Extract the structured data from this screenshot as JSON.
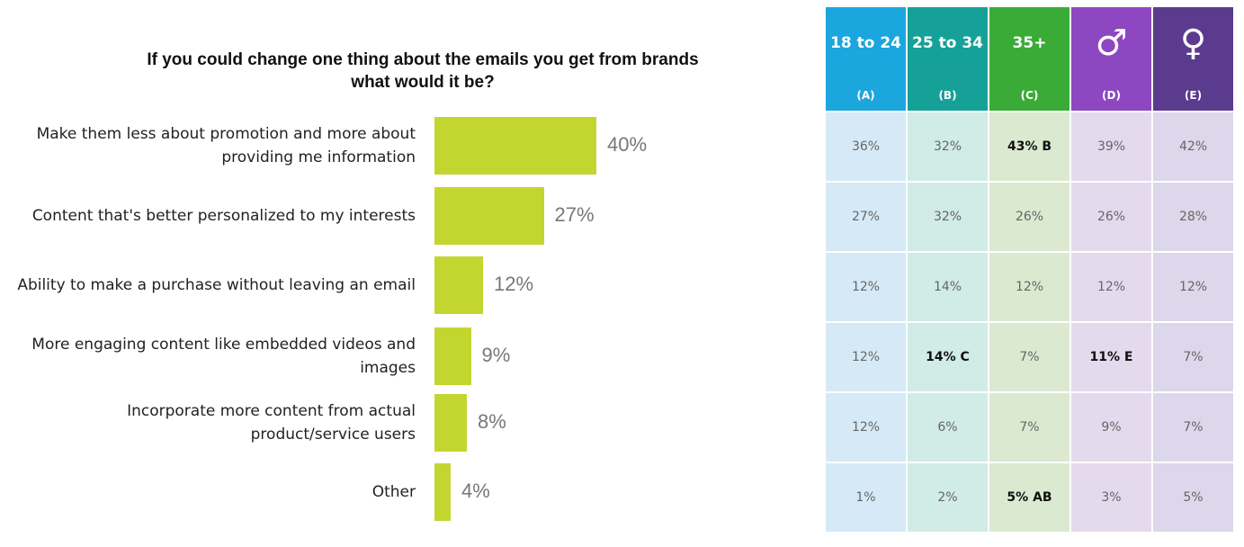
{
  "chart_data": {
    "type": "bar",
    "orientation": "horizontal",
    "title": "If you could change one thing about the emails you get from brands\nwhat would it be?",
    "categories": [
      "Make them less about promotion and more about\nproviding me information",
      "Content that's better personalized to my interests",
      "Ability to make a purchase without leaving an email",
      "More engaging content like embedded videos and\nimages",
      "Incorporate more content from actual\nproduct/service users",
      "Other"
    ],
    "values": [
      40,
      27,
      12,
      9,
      8,
      4
    ],
    "value_labels": [
      "40%",
      "27%",
      "12%",
      "9%",
      "8%",
      "4%"
    ],
    "color": "#c3d630"
  },
  "table": {
    "columns": [
      {
        "header": "18 to 24",
        "code": "(A)",
        "color": "#1ba6de",
        "cell_color": "#d5eaf6"
      },
      {
        "header": "25 to 34",
        "code": "(B)",
        "color": "#15a197",
        "cell_color": "#d1ebe7"
      },
      {
        "header": "35+",
        "code": "(C)",
        "color": "#3aab37",
        "cell_color": "#dbe9d0"
      },
      {
        "header": "♂",
        "code": "(D)",
        "color": "#8d47c1",
        "cell_color": "#e5d9ee"
      },
      {
        "header": "♀",
        "code": "(E)",
        "color": "#5b3b8e",
        "cell_color": "#dcd7ea"
      }
    ],
    "rows": [
      [
        "36%",
        "32%",
        "43% B",
        "39%",
        "42%"
      ],
      [
        "27%",
        "32%",
        "26%",
        "26%",
        "28%"
      ],
      [
        "12%",
        "14%",
        "12%",
        "12%",
        "12%"
      ],
      [
        "12%",
        "14% C",
        "7%",
        "11% E",
        "7%"
      ],
      [
        "12%",
        "6%",
        "7%",
        "9%",
        "7%"
      ],
      [
        "1%",
        "2%",
        "5% AB",
        "3%",
        "5%"
      ]
    ],
    "bold_cells": [
      [
        0,
        2
      ],
      [
        3,
        1
      ],
      [
        3,
        3
      ],
      [
        5,
        2
      ]
    ]
  }
}
